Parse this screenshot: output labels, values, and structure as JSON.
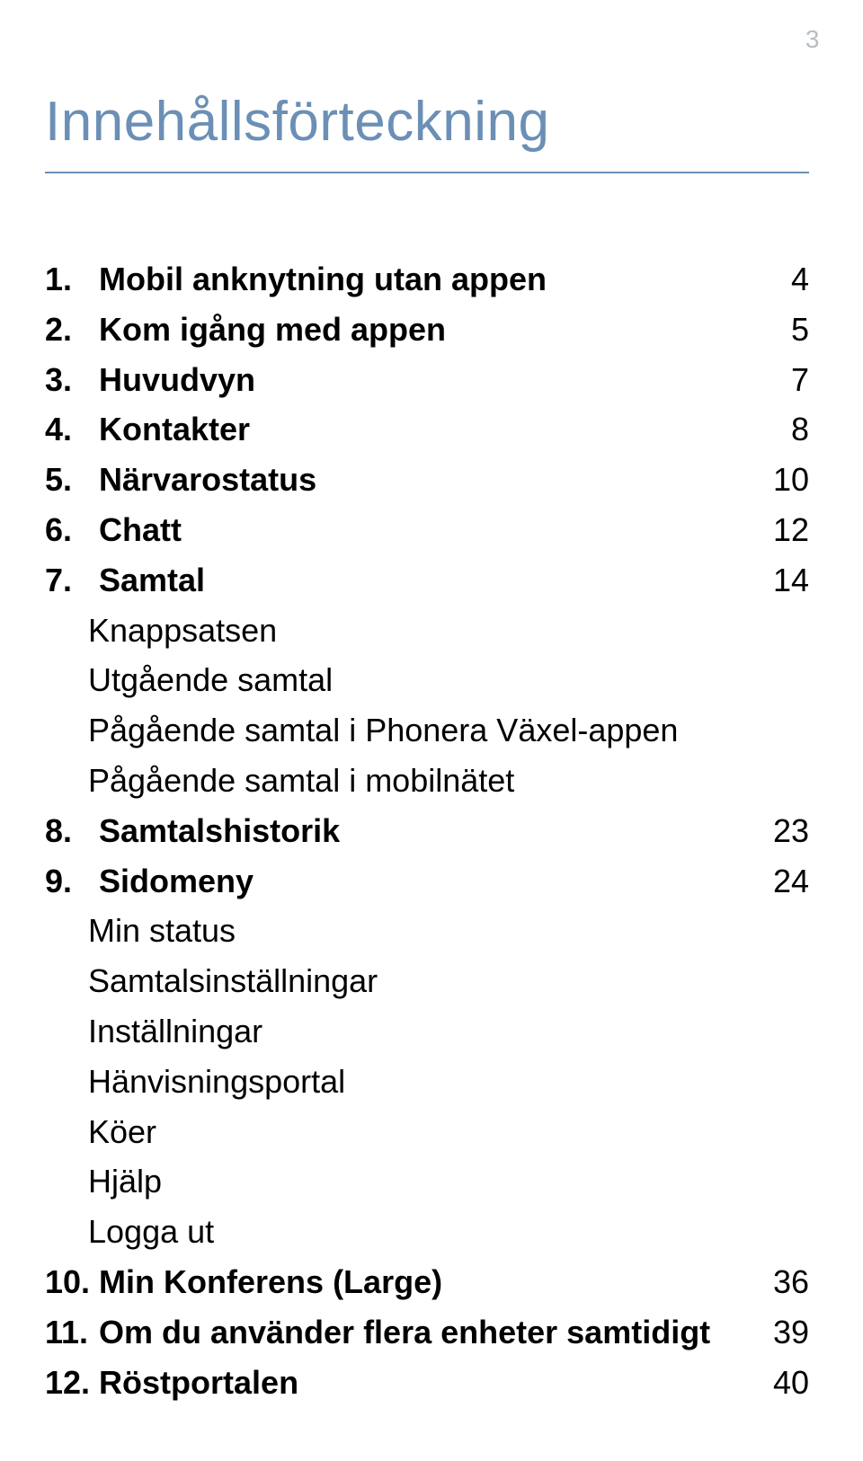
{
  "page_number_top": "3",
  "title": "Innehållsförteckning",
  "colors": {
    "title_color": "#6b8fb5",
    "rule_color": "#6b8fb5",
    "page_number_color": "#b7bdc2",
    "body_text": "#000000",
    "background": "#ffffff"
  },
  "toc": [
    {
      "num": "1.",
      "label": "Mobil anknytning utan appen",
      "page": "4",
      "bold": true
    },
    {
      "num": "2.",
      "label": "Kom igång med appen",
      "page": "5",
      "bold": true
    },
    {
      "num": "3.",
      "label": "Huvudvyn",
      "page": "7",
      "bold": true
    },
    {
      "num": "4.",
      "label": "Kontakter",
      "page": "8",
      "bold": true
    },
    {
      "num": "5.",
      "label": "Närvarostatus",
      "page": "10",
      "bold": true
    },
    {
      "num": "6.",
      "label": "Chatt",
      "page": "12",
      "bold": true
    },
    {
      "num": "7.",
      "label": "Samtal",
      "page": "14",
      "bold": true
    },
    {
      "num": "",
      "label": "Knappsatsen",
      "page": "",
      "bold": false,
      "sub": true
    },
    {
      "num": "",
      "label": "Utgående samtal",
      "page": "",
      "bold": false,
      "sub": true
    },
    {
      "num": "",
      "label": "Pågående samtal i Phonera Växel-appen",
      "page": "",
      "bold": false,
      "sub": true
    },
    {
      "num": "",
      "label": "Pågående samtal i mobilnätet",
      "page": "",
      "bold": false,
      "sub": true
    },
    {
      "num": "8.",
      "label": "Samtalshistorik",
      "page": "23",
      "bold": true
    },
    {
      "num": "9.",
      "label": "Sidomeny",
      "page": "24",
      "bold": true
    },
    {
      "num": "",
      "label": "Min status",
      "page": "",
      "bold": false,
      "sub": true
    },
    {
      "num": "",
      "label": "Samtalsinställningar",
      "page": "",
      "bold": false,
      "sub": true
    },
    {
      "num": "",
      "label": "Inställningar",
      "page": "",
      "bold": false,
      "sub": true
    },
    {
      "num": "",
      "label": "Hänvisningsportal",
      "page": "",
      "bold": false,
      "sub": true
    },
    {
      "num": "",
      "label": "Köer",
      "page": "",
      "bold": false,
      "sub": true
    },
    {
      "num": "",
      "label": "Hjälp",
      "page": "",
      "bold": false,
      "sub": true
    },
    {
      "num": "",
      "label": "Logga ut",
      "page": "",
      "bold": false,
      "sub": true
    },
    {
      "num": "10.",
      "label": "Min Konferens (Large)",
      "page": "36",
      "bold": true
    },
    {
      "num": "11.",
      "label": "Om du använder flera enheter samtidigt",
      "page": "39",
      "bold": true
    },
    {
      "num": "12.",
      "label": "Röstportalen",
      "page": "40",
      "bold": true
    }
  ]
}
